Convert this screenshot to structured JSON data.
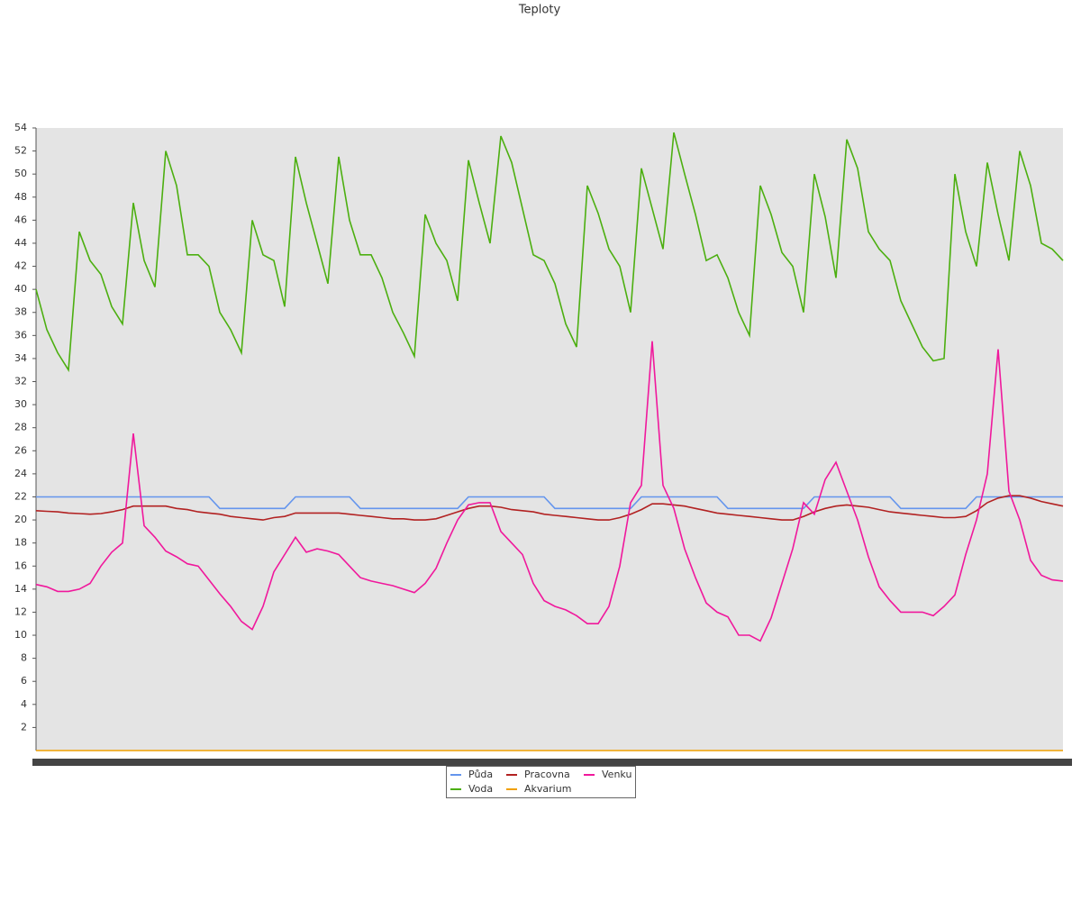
{
  "chart_data": {
    "type": "line",
    "title": "Teploty",
    "ylim": [
      0,
      54
    ],
    "yticks": [
      2,
      4,
      6,
      8,
      10,
      12,
      14,
      16,
      18,
      20,
      22,
      24,
      26,
      28,
      30,
      32,
      34,
      36,
      38,
      40,
      42,
      44,
      46,
      48,
      50,
      52,
      54
    ],
    "legend": "bottom",
    "series": [
      {
        "name": "Půda",
        "color": "#6495ed",
        "values": [
          22,
          22,
          22,
          22,
          22,
          22,
          22,
          22,
          22,
          22,
          22,
          22,
          22,
          22,
          22,
          22,
          22,
          21,
          21,
          21,
          21,
          21,
          21,
          21,
          22,
          22,
          22,
          22,
          22,
          22,
          21,
          21,
          21,
          21,
          21,
          21,
          21,
          21,
          21,
          21,
          22,
          22,
          22,
          22,
          22,
          22,
          22,
          22,
          21,
          21,
          21,
          21,
          21,
          21,
          21,
          21,
          22,
          22,
          22,
          22,
          22,
          22,
          22,
          22,
          21,
          21,
          21,
          21,
          21,
          21,
          21,
          21,
          22,
          22,
          22,
          22,
          22,
          22,
          22,
          22,
          21,
          21,
          21,
          21,
          21,
          21,
          21,
          22,
          22,
          22,
          22,
          22,
          22,
          22,
          22,
          22
        ]
      },
      {
        "name": "Voda",
        "color": "#4caf10",
        "values": [
          40,
          36.5,
          34.5,
          33,
          45,
          42.5,
          41.3,
          38.5,
          37,
          47.5,
          42.5,
          40.2,
          52,
          49,
          43,
          43,
          42,
          38,
          36.5,
          34.5,
          46,
          43,
          42.5,
          38.5,
          51.5,
          47.5,
          44,
          40.5,
          51.5,
          46,
          43,
          43,
          41,
          38,
          36.2,
          34.2,
          46.5,
          44,
          42.5,
          39,
          51.2,
          47.5,
          44,
          53.3,
          51,
          47,
          43,
          42.5,
          40.5,
          37,
          35,
          49,
          46.6,
          43.5,
          42,
          38,
          50.5,
          47,
          43.5,
          53.6,
          50,
          46.5,
          42.5,
          43,
          41,
          38,
          36,
          49,
          46.5,
          43.2,
          42,
          38,
          50,
          46.3,
          41,
          53,
          50.5,
          45,
          43.5,
          42.5,
          39,
          37,
          35,
          33.8,
          34,
          50,
          45,
          42,
          51,
          46.5,
          42.5,
          52,
          49,
          44,
          43.5,
          42.5
        ]
      },
      {
        "name": "Pracovna",
        "color": "#b22222",
        "values": [
          20.8,
          20.75,
          20.7,
          20.6,
          20.55,
          20.5,
          20.55,
          20.7,
          20.9,
          21.2,
          21.2,
          21.2,
          21.2,
          21,
          20.9,
          20.7,
          20.6,
          20.5,
          20.3,
          20.2,
          20.1,
          20,
          20.2,
          20.3,
          20.6,
          20.6,
          20.6,
          20.6,
          20.6,
          20.5,
          20.4,
          20.3,
          20.2,
          20.1,
          20.1,
          20,
          20,
          20.1,
          20.4,
          20.7,
          21,
          21.2,
          21.2,
          21.1,
          20.9,
          20.8,
          20.7,
          20.5,
          20.4,
          20.3,
          20.2,
          20.1,
          20,
          20,
          20.2,
          20.5,
          20.9,
          21.4,
          21.4,
          21.3,
          21.2,
          21,
          20.8,
          20.6,
          20.5,
          20.4,
          20.3,
          20.2,
          20.1,
          20,
          20,
          20.3,
          20.7,
          21,
          21.2,
          21.3,
          21.2,
          21.1,
          20.9,
          20.7,
          20.6,
          20.5,
          20.4,
          20.3,
          20.2,
          20.2,
          20.3,
          20.8,
          21.5,
          21.9,
          22.1,
          22.1,
          21.9,
          21.6,
          21.4,
          21.2
        ]
      },
      {
        "name": "Akvarium",
        "color": "#f0a000",
        "values": [
          0,
          0,
          0,
          0,
          0,
          0,
          0,
          0,
          0,
          0,
          0,
          0,
          0,
          0,
          0,
          0,
          0,
          0,
          0,
          0,
          0,
          0,
          0,
          0,
          0,
          0,
          0,
          0,
          0,
          0,
          0,
          0,
          0,
          0,
          0,
          0,
          0,
          0,
          0,
          0,
          0,
          0,
          0,
          0,
          0,
          0,
          0,
          0,
          0,
          0,
          0,
          0,
          0,
          0,
          0,
          0,
          0,
          0,
          0,
          0,
          0,
          0,
          0,
          0,
          0,
          0,
          0,
          0,
          0,
          0,
          0,
          0,
          0,
          0,
          0,
          0,
          0,
          0,
          0,
          0,
          0,
          0,
          0,
          0,
          0,
          0,
          0,
          0,
          0,
          0,
          0,
          0,
          0,
          0,
          0,
          0
        ]
      },
      {
        "name": "Venku",
        "color": "#f0189c",
        "values": [
          14.4,
          14.2,
          13.8,
          13.8,
          14,
          14.5,
          16,
          17.2,
          18,
          27.5,
          19.5,
          18.5,
          17.3,
          16.8,
          16.2,
          16,
          14.8,
          13.6,
          12.5,
          11.2,
          10.5,
          12.5,
          15.5,
          17,
          18.5,
          17.2,
          17.5,
          17.3,
          17,
          16,
          15,
          14.7,
          14.5,
          14.3,
          14,
          13.7,
          14.5,
          15.8,
          18,
          20,
          21.3,
          21.5,
          21.5,
          19,
          18,
          17,
          14.5,
          13,
          12.5,
          12.2,
          11.7,
          11,
          11,
          12.5,
          16,
          21.5,
          23,
          35.5,
          23,
          21,
          17.5,
          15,
          12.8,
          12,
          11.6,
          10,
          10,
          9.5,
          11.5,
          14.5,
          17.5,
          21.5,
          20.5,
          23.5,
          25,
          22.5,
          20,
          16.8,
          14.2,
          13,
          12,
          12,
          12,
          11.7,
          12.5,
          13.5,
          17,
          20,
          24,
          34.8,
          22.5,
          20,
          16.5,
          15.2,
          14.8,
          14.7
        ]
      }
    ]
  }
}
